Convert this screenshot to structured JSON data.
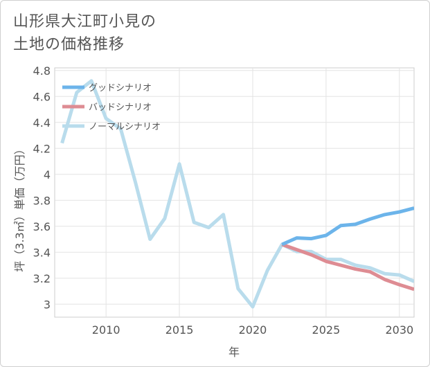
{
  "chart_data": {
    "type": "line",
    "title_line1": "山形県大江町小見の",
    "title_line2": "土地の価格推移",
    "xlabel": "年",
    "ylabel": "坪（3.3㎡）単価（万円）",
    "xlim": [
      2006.5,
      2031
    ],
    "ylim": [
      2.9,
      4.82
    ],
    "x_ticks": [
      2010,
      2015,
      2020,
      2025,
      2030
    ],
    "y_ticks": [
      3,
      3.2,
      3.4,
      3.6,
      3.8,
      4,
      4.2,
      4.4,
      4.6,
      4.8
    ],
    "grid": true,
    "legend_position": "top-left",
    "series": [
      {
        "name": "グッドシナリオ",
        "color": "#6cb4ea",
        "x": [
          2022,
          2023,
          2024,
          2025,
          2026,
          2027,
          2028,
          2029,
          2030,
          2031
        ],
        "values": [
          3.46,
          3.51,
          3.505,
          3.53,
          3.605,
          3.615,
          3.655,
          3.69,
          3.71,
          3.74
        ]
      },
      {
        "name": "バッドシナリオ",
        "color": "#de8c93",
        "x": [
          2022,
          2023,
          2024,
          2025,
          2026,
          2027,
          2028,
          2029,
          2030,
          2031
        ],
        "values": [
          3.46,
          3.42,
          3.38,
          3.33,
          3.3,
          3.27,
          3.25,
          3.19,
          3.15,
          3.115
        ]
      },
      {
        "name": "ノーマルシナリオ",
        "color": "#b9dcec",
        "x": [
          2007,
          2008,
          2009,
          2010,
          2011,
          2012,
          2013,
          2014,
          2015,
          2016,
          2017,
          2018,
          2019,
          2020,
          2021,
          2022,
          2023,
          2024,
          2025,
          2026,
          2027,
          2028,
          2029,
          2030,
          2031
        ],
        "values": [
          4.24,
          4.63,
          4.72,
          4.43,
          4.35,
          3.94,
          3.5,
          3.66,
          4.08,
          3.63,
          3.59,
          3.69,
          3.12,
          2.98,
          3.26,
          3.46,
          3.405,
          3.405,
          3.345,
          3.345,
          3.3,
          3.28,
          3.235,
          3.225,
          3.175
        ]
      }
    ]
  }
}
